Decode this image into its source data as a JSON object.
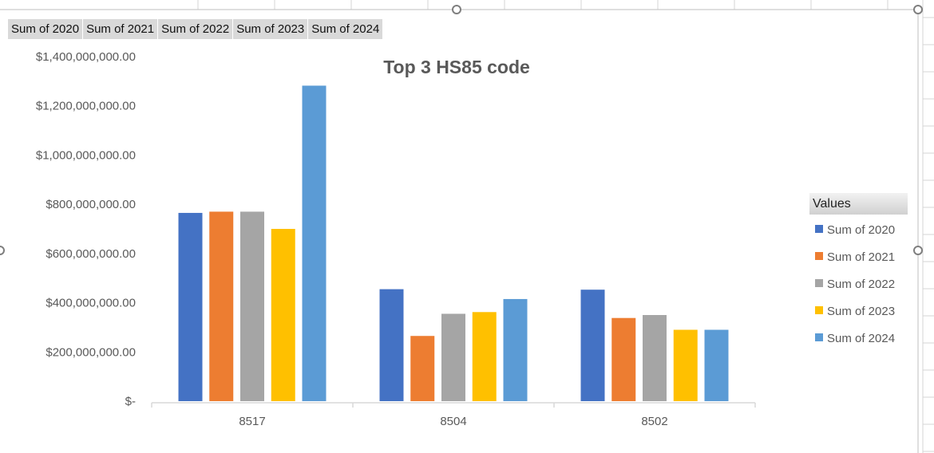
{
  "field_buttons": [
    "Sum of 2020",
    "Sum of 2021",
    "Sum of 2022",
    "Sum of 2023",
    "Sum of 2024"
  ],
  "legend": {
    "title": "Values"
  },
  "chart_data": {
    "type": "bar",
    "title": "Top 3 HS85 code",
    "categories": [
      "8517",
      "8504",
      "8502"
    ],
    "y_tick_labels": [
      "$-",
      "$200,000,000.00",
      "$400,000,000.00",
      "$600,000,000.00",
      "$800,000,000.00",
      "$1,000,000,000.00",
      "$1,200,000,000.00",
      "$1,400,000,000.00"
    ],
    "ylim": [
      0,
      1400000000
    ],
    "y_major": 200000000,
    "grid": false,
    "legend_position": "right",
    "series": [
      {
        "name": "Sum of 2020",
        "color": "#4472c4",
        "values": [
          765000000,
          455000000,
          453000000
        ]
      },
      {
        "name": "Sum of 2021",
        "color": "#ed7d31",
        "values": [
          770000000,
          265000000,
          338000000
        ]
      },
      {
        "name": "Sum of 2022",
        "color": "#a5a5a5",
        "values": [
          770000000,
          355000000,
          350000000
        ]
      },
      {
        "name": "Sum of 2023",
        "color": "#ffc000",
        "values": [
          700000000,
          362000000,
          290000000
        ]
      },
      {
        "name": "Sum of 2024",
        "color": "#5b9bd5",
        "values": [
          1282000000,
          415000000,
          290000000
        ]
      }
    ]
  }
}
